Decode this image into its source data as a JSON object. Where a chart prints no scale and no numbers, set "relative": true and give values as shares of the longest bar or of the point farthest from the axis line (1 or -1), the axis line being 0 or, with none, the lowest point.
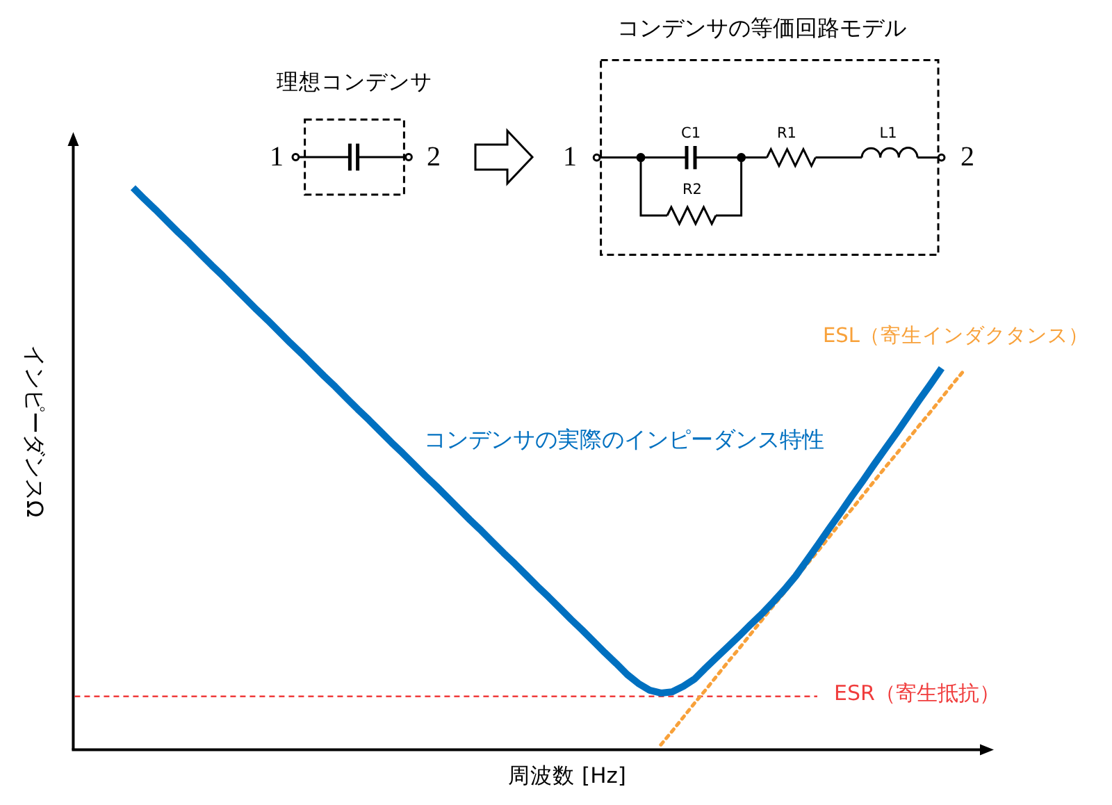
{
  "chart_data": {
    "type": "line",
    "relative": true,
    "xlabel": "周波数 [Hz]",
    "ylabel": "インピーダンスΩ",
    "categories": [
      null,
      null,
      null,
      null,
      null,
      null,
      null,
      null,
      null,
      null,
      null,
      null,
      null,
      null,
      null,
      null,
      null,
      null,
      null,
      null,
      null,
      null,
      null,
      null,
      null,
      null,
      null,
      null,
      null,
      null,
      null,
      null,
      null,
      null,
      null,
      null,
      null,
      null,
      null,
      null,
      null,
      null,
      null,
      null,
      null,
      null,
      null,
      null,
      null,
      null,
      null,
      null,
      null,
      null,
      null,
      null,
      null,
      null,
      null,
      null,
      null,
      null,
      null,
      null,
      null,
      null,
      null,
      null,
      null,
      null,
      null,
      null,
      null,
      null,
      null
    ],
    "series": [
      {
        "name": "コンデンサの実際のインピーダンス特性",
        "color": "#0070c0",
        "values": [
          1,
          0.98,
          0.961,
          0.941,
          0.921,
          0.902,
          0.882,
          0.862,
          0.843,
          0.823,
          0.803,
          0.783,
          0.764,
          0.744,
          0.724,
          0.705,
          0.685,
          0.665,
          0.646,
          0.626,
          0.606,
          0.587,
          0.567,
          0.547,
          0.528,
          0.508,
          0.488,
          0.469,
          0.449,
          0.429,
          0.409,
          0.39,
          0.37,
          0.35,
          0.331,
          0.311,
          0.291,
          0.272,
          0.252,
          0.232,
          0.213,
          0.193,
          0.173,
          0.154,
          0.134,
          0.118,
          0.106,
          0.101,
          0.103,
          0.113,
          0.126,
          0.146,
          0.165,
          0.184,
          0.203,
          0.223,
          0.242,
          0.263,
          0.285,
          0.309,
          0.337,
          0.365,
          0.394,
          0.422,
          0.451,
          0.479,
          0.508,
          0.536,
          0.564,
          0.593,
          0.622,
          0.65,
          0.679,
          null,
          null
        ]
      },
      {
        "name": "ESL（寄生インダクタンス）",
        "color": "#f8a13a",
        "line_style": "dotted",
        "values": [
          null,
          null,
          null,
          null,
          null,
          null,
          null,
          null,
          null,
          null,
          null,
          null,
          null,
          null,
          null,
          null,
          null,
          null,
          null,
          null,
          null,
          null,
          null,
          null,
          null,
          null,
          null,
          null,
          null,
          null,
          null,
          null,
          null,
          null,
          null,
          null,
          null,
          null,
          null,
          null,
          null,
          null,
          null,
          null,
          null,
          null,
          null,
          0.009,
          0.033,
          0.058,
          0.083,
          0.107,
          0.132,
          0.157,
          0.181,
          0.206,
          0.231,
          0.256,
          0.28,
          0.305,
          0.33,
          0.354,
          0.379,
          0.404,
          0.428,
          0.453,
          0.478,
          0.503,
          0.527,
          0.552,
          0.577,
          0.601,
          0.626,
          0.651,
          0.675
        ]
      }
    ],
    "ref_lines": [
      {
        "axis": "y",
        "value": 0.095,
        "label": "ESR（寄生抵抗）",
        "color": "#f03c3c",
        "line_style": "dashed"
      }
    ],
    "annotations": [
      "理想コンデンサ",
      "1",
      "2",
      "コンデンサの等価回路モデル",
      "1",
      "2",
      "C1",
      "R1",
      "L1",
      "R2"
    ]
  }
}
